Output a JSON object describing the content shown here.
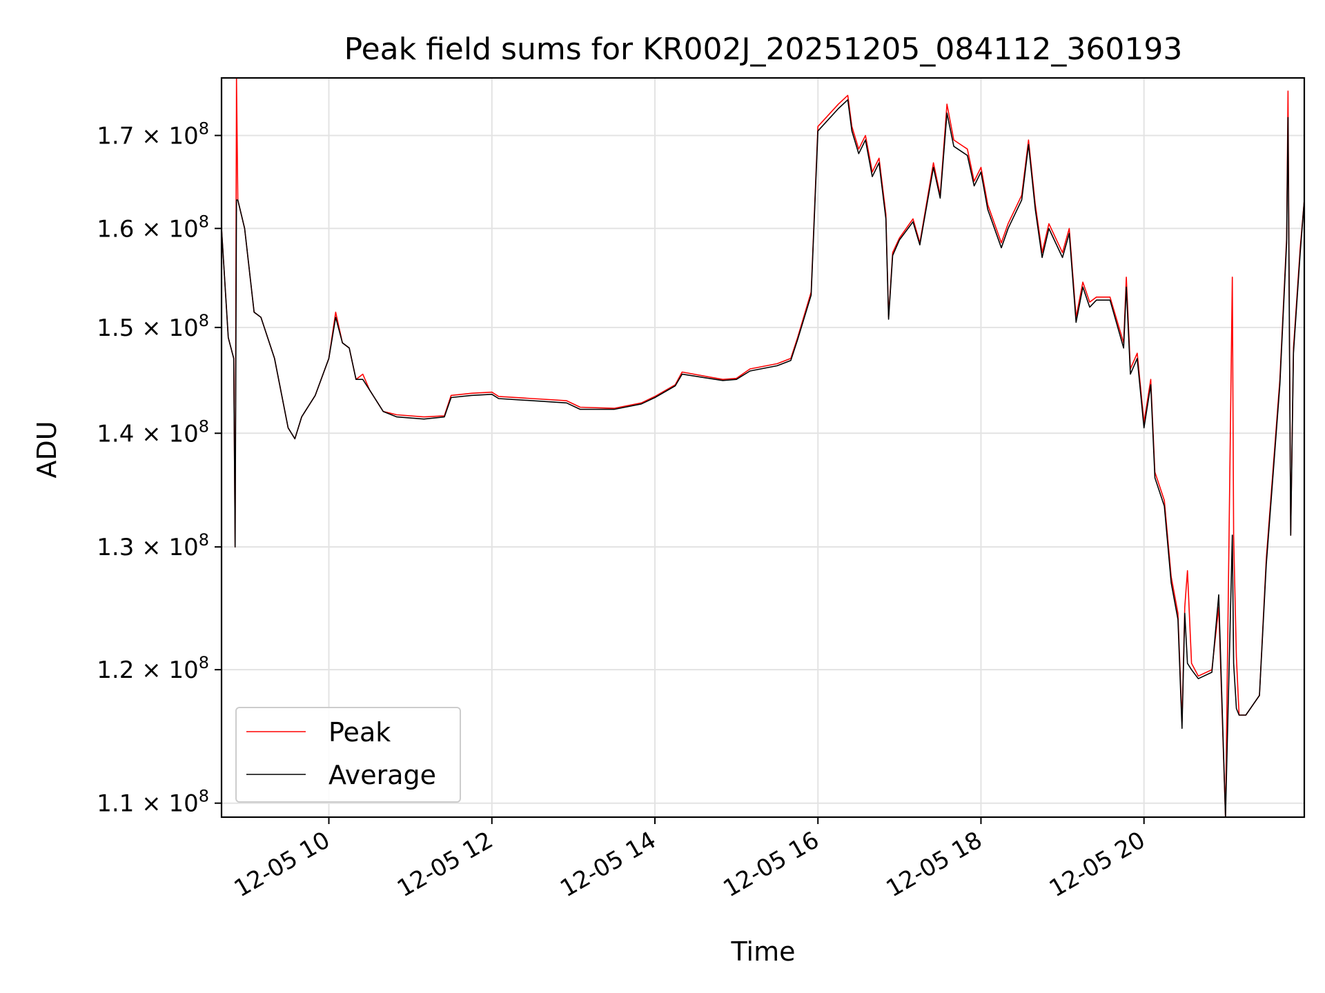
{
  "chart_data": {
    "type": "line",
    "title": "Peak field sums for KR002J_20251205_084112_360193",
    "xlabel": "Time",
    "ylabel": "ADU",
    "y_scale": "log",
    "xlim": [
      "2025-12-05 08:41",
      "2025-12-05 21:58"
    ],
    "ylim": [
      109000000,
      176500000
    ],
    "x_ticks": [
      {
        "value": "2025-12-05 10:00",
        "label": "12-05 10"
      },
      {
        "value": "2025-12-05 12:00",
        "label": "12-05 12"
      },
      {
        "value": "2025-12-05 14:00",
        "label": "12-05 14"
      },
      {
        "value": "2025-12-05 16:00",
        "label": "12-05 16"
      },
      {
        "value": "2025-12-05 18:00",
        "label": "12-05 18"
      },
      {
        "value": "2025-12-05 20:00",
        "label": "12-05 20"
      }
    ],
    "y_ticks": [
      {
        "value": 110000000,
        "mantissa": "1.1",
        "base": "10",
        "exp": "8"
      },
      {
        "value": 120000000,
        "mantissa": "1.2",
        "base": "10",
        "exp": "8"
      },
      {
        "value": 130000000,
        "mantissa": "1.3",
        "base": "10",
        "exp": "8"
      },
      {
        "value": 140000000,
        "mantissa": "1.4",
        "base": "10",
        "exp": "8"
      },
      {
        "value": 150000000,
        "mantissa": "1.5",
        "base": "10",
        "exp": "8"
      },
      {
        "value": 160000000,
        "mantissa": "1.6",
        "base": "10",
        "exp": "8"
      },
      {
        "value": 170000000,
        "mantissa": "1.7",
        "base": "10",
        "exp": "8"
      }
    ],
    "grid": true,
    "legend_position": "lower-left",
    "series": [
      {
        "name": "Peak",
        "color": "#ff0000",
        "x": [
          "2025-12-05 08:41",
          "2025-12-05 08:46",
          "2025-12-05 08:50",
          "2025-12-05 08:51",
          "2025-12-05 08:52",
          "2025-12-05 08:53",
          "2025-12-05 08:58",
          "2025-12-05 09:05",
          "2025-12-05 09:10",
          "2025-12-05 09:15",
          "2025-12-05 09:20",
          "2025-12-05 09:30",
          "2025-12-05 09:35",
          "2025-12-05 09:40",
          "2025-12-05 09:50",
          "2025-12-05 10:00",
          "2025-12-05 10:05",
          "2025-12-05 10:10",
          "2025-12-05 10:15",
          "2025-12-05 10:20",
          "2025-12-05 10:25",
          "2025-12-05 10:30",
          "2025-12-05 10:40",
          "2025-12-05 10:50",
          "2025-12-05 11:10",
          "2025-12-05 11:25",
          "2025-12-05 11:30",
          "2025-12-05 11:45",
          "2025-12-05 12:00",
          "2025-12-05 12:05",
          "2025-12-05 12:30",
          "2025-12-05 12:55",
          "2025-12-05 13:05",
          "2025-12-05 13:30",
          "2025-12-05 13:50",
          "2025-12-05 14:00",
          "2025-12-05 14:15",
          "2025-12-05 14:20",
          "2025-12-05 14:50",
          "2025-12-05 15:00",
          "2025-12-05 15:10",
          "2025-12-05 15:30",
          "2025-12-05 15:40",
          "2025-12-05 15:45",
          "2025-12-05 15:55",
          "2025-12-05 16:00",
          "2025-12-05 16:15",
          "2025-12-05 16:22",
          "2025-12-05 16:25",
          "2025-12-05 16:30",
          "2025-12-05 16:35",
          "2025-12-05 16:40",
          "2025-12-05 16:45",
          "2025-12-05 16:50",
          "2025-12-05 16:52",
          "2025-12-05 16:55",
          "2025-12-05 17:00",
          "2025-12-05 17:10",
          "2025-12-05 17:15",
          "2025-12-05 17:25",
          "2025-12-05 17:30",
          "2025-12-05 17:35",
          "2025-12-05 17:40",
          "2025-12-05 17:50",
          "2025-12-05 17:55",
          "2025-12-05 18:00",
          "2025-12-05 18:05",
          "2025-12-05 18:15",
          "2025-12-05 18:20",
          "2025-12-05 18:30",
          "2025-12-05 18:35",
          "2025-12-05 18:40",
          "2025-12-05 18:45",
          "2025-12-05 18:50",
          "2025-12-05 19:00",
          "2025-12-05 19:05",
          "2025-12-05 19:10",
          "2025-12-05 19:15",
          "2025-12-05 19:20",
          "2025-12-05 19:25",
          "2025-12-05 19:35",
          "2025-12-05 19:45",
          "2025-12-05 19:47",
          "2025-12-05 19:50",
          "2025-12-05 19:55",
          "2025-12-05 20:00",
          "2025-12-05 20:05",
          "2025-12-05 20:08",
          "2025-12-05 20:15",
          "2025-12-05 20:20",
          "2025-12-05 20:25",
          "2025-12-05 20:28",
          "2025-12-05 20:30",
          "2025-12-05 20:32",
          "2025-12-05 20:35",
          "2025-12-05 20:40",
          "2025-12-05 20:50",
          "2025-12-05 20:55",
          "2025-12-05 21:00",
          "2025-12-05 21:05",
          "2025-12-05 21:06",
          "2025-12-05 21:08",
          "2025-12-05 21:10",
          "2025-12-05 21:15",
          "2025-12-05 21:25",
          "2025-12-05 21:30",
          "2025-12-05 21:40",
          "2025-12-05 21:45",
          "2025-12-05 21:46",
          "2025-12-05 21:48",
          "2025-12-05 21:50",
          "2025-12-05 21:55",
          "2025-12-05 21:58"
        ],
        "y": [
          160000000,
          149000000,
          147000000,
          130000000,
          176500000,
          163000000,
          160000000,
          151500000,
          151000000,
          149000000,
          147000000,
          140500000,
          139500000,
          141500000,
          143500000,
          147000000,
          151500000,
          148500000,
          148000000,
          145000000,
          145500000,
          144000000,
          142000000,
          141700000,
          141500000,
          141600000,
          143500000,
          143700000,
          143800000,
          143400000,
          143200000,
          143000000,
          142400000,
          142300000,
          142800000,
          143400000,
          144500000,
          145700000,
          145000000,
          145100000,
          146000000,
          146500000,
          147000000,
          149000000,
          153500000,
          171000000,
          173500000,
          174500000,
          171000000,
          168500000,
          170000000,
          166000000,
          167500000,
          161500000,
          151000000,
          157500000,
          159000000,
          161000000,
          158500000,
          167000000,
          163500000,
          173500000,
          169500000,
          168500000,
          165000000,
          166500000,
          162500000,
          158500000,
          160500000,
          163500000,
          169500000,
          162500000,
          157500000,
          160500000,
          157500000,
          160000000,
          151000000,
          154500000,
          152500000,
          153000000,
          153000000,
          148500000,
          155000000,
          146000000,
          147500000,
          141000000,
          145000000,
          136500000,
          134000000,
          127500000,
          124500000,
          116000000,
          125000000,
          128000000,
          120500000,
          119500000,
          120000000,
          125000000,
          109000000,
          155000000,
          131000000,
          121000000,
          116500000,
          116500000,
          118000000,
          129000000,
          145000000,
          159000000,
          175000000,
          131000000,
          148000000,
          158000000,
          163000000
        ]
      },
      {
        "name": "Average",
        "color": "#000000",
        "x": [
          "2025-12-05 08:41",
          "2025-12-05 08:46",
          "2025-12-05 08:50",
          "2025-12-05 08:51",
          "2025-12-05 08:52",
          "2025-12-05 08:53",
          "2025-12-05 08:58",
          "2025-12-05 09:05",
          "2025-12-05 09:10",
          "2025-12-05 09:15",
          "2025-12-05 09:20",
          "2025-12-05 09:30",
          "2025-12-05 09:35",
          "2025-12-05 09:40",
          "2025-12-05 09:50",
          "2025-12-05 10:00",
          "2025-12-05 10:05",
          "2025-12-05 10:10",
          "2025-12-05 10:15",
          "2025-12-05 10:20",
          "2025-12-05 10:25",
          "2025-12-05 10:30",
          "2025-12-05 10:40",
          "2025-12-05 10:50",
          "2025-12-05 11:10",
          "2025-12-05 11:25",
          "2025-12-05 11:30",
          "2025-12-05 11:45",
          "2025-12-05 12:00",
          "2025-12-05 12:05",
          "2025-12-05 12:30",
          "2025-12-05 12:55",
          "2025-12-05 13:05",
          "2025-12-05 13:30",
          "2025-12-05 13:50",
          "2025-12-05 14:00",
          "2025-12-05 14:15",
          "2025-12-05 14:20",
          "2025-12-05 14:50",
          "2025-12-05 15:00",
          "2025-12-05 15:10",
          "2025-12-05 15:30",
          "2025-12-05 15:40",
          "2025-12-05 15:45",
          "2025-12-05 15:55",
          "2025-12-05 16:00",
          "2025-12-05 16:15",
          "2025-12-05 16:22",
          "2025-12-05 16:25",
          "2025-12-05 16:30",
          "2025-12-05 16:35",
          "2025-12-05 16:40",
          "2025-12-05 16:45",
          "2025-12-05 16:50",
          "2025-12-05 16:52",
          "2025-12-05 16:55",
          "2025-12-05 17:00",
          "2025-12-05 17:10",
          "2025-12-05 17:15",
          "2025-12-05 17:25",
          "2025-12-05 17:30",
          "2025-12-05 17:35",
          "2025-12-05 17:40",
          "2025-12-05 17:50",
          "2025-12-05 17:55",
          "2025-12-05 18:00",
          "2025-12-05 18:05",
          "2025-12-05 18:15",
          "2025-12-05 18:20",
          "2025-12-05 18:30",
          "2025-12-05 18:35",
          "2025-12-05 18:40",
          "2025-12-05 18:45",
          "2025-12-05 18:50",
          "2025-12-05 19:00",
          "2025-12-05 19:05",
          "2025-12-05 19:10",
          "2025-12-05 19:15",
          "2025-12-05 19:20",
          "2025-12-05 19:25",
          "2025-12-05 19:35",
          "2025-12-05 19:45",
          "2025-12-05 19:47",
          "2025-12-05 19:50",
          "2025-12-05 19:55",
          "2025-12-05 20:00",
          "2025-12-05 20:05",
          "2025-12-05 20:08",
          "2025-12-05 20:15",
          "2025-12-05 20:20",
          "2025-12-05 20:25",
          "2025-12-05 20:28",
          "2025-12-05 20:30",
          "2025-12-05 20:32",
          "2025-12-05 20:35",
          "2025-12-05 20:40",
          "2025-12-05 20:50",
          "2025-12-05 20:55",
          "2025-12-05 21:00",
          "2025-12-05 21:05",
          "2025-12-05 21:06",
          "2025-12-05 21:08",
          "2025-12-05 21:10",
          "2025-12-05 21:15",
          "2025-12-05 21:25",
          "2025-12-05 21:30",
          "2025-12-05 21:40",
          "2025-12-05 21:45",
          "2025-12-05 21:46",
          "2025-12-05 21:48",
          "2025-12-05 21:50",
          "2025-12-05 21:55",
          "2025-12-05 21:58"
        ],
        "y": [
          160000000,
          149000000,
          147000000,
          130000000,
          163000000,
          163000000,
          160000000,
          151500000,
          151000000,
          149000000,
          147000000,
          140500000,
          139500000,
          141500000,
          143500000,
          147000000,
          151000000,
          148500000,
          148000000,
          145000000,
          145000000,
          144000000,
          142000000,
          141500000,
          141300000,
          141500000,
          143300000,
          143500000,
          143600000,
          143200000,
          143000000,
          142800000,
          142200000,
          142200000,
          142700000,
          143300000,
          144400000,
          145500000,
          144900000,
          145000000,
          145800000,
          146300000,
          146800000,
          148800000,
          153200000,
          170500000,
          173000000,
          174000000,
          170500000,
          168000000,
          169500000,
          165500000,
          167000000,
          161000000,
          150800000,
          157200000,
          158800000,
          160700000,
          158300000,
          166500000,
          163200000,
          172500000,
          168800000,
          167800000,
          164500000,
          166000000,
          162000000,
          158000000,
          160000000,
          163000000,
          169000000,
          162000000,
          157000000,
          160000000,
          157000000,
          159500000,
          150500000,
          154000000,
          152000000,
          152700000,
          152700000,
          148000000,
          154000000,
          145500000,
          147000000,
          140500000,
          144500000,
          136000000,
          133500000,
          127000000,
          124000000,
          115500000,
          124500000,
          120500000,
          120000000,
          119300000,
          119800000,
          126000000,
          109000000,
          131000000,
          120500000,
          117000000,
          116500000,
          116500000,
          118000000,
          128500000,
          144500000,
          158500000,
          172000000,
          131000000,
          147500000,
          157500000,
          163000000
        ]
      }
    ]
  }
}
